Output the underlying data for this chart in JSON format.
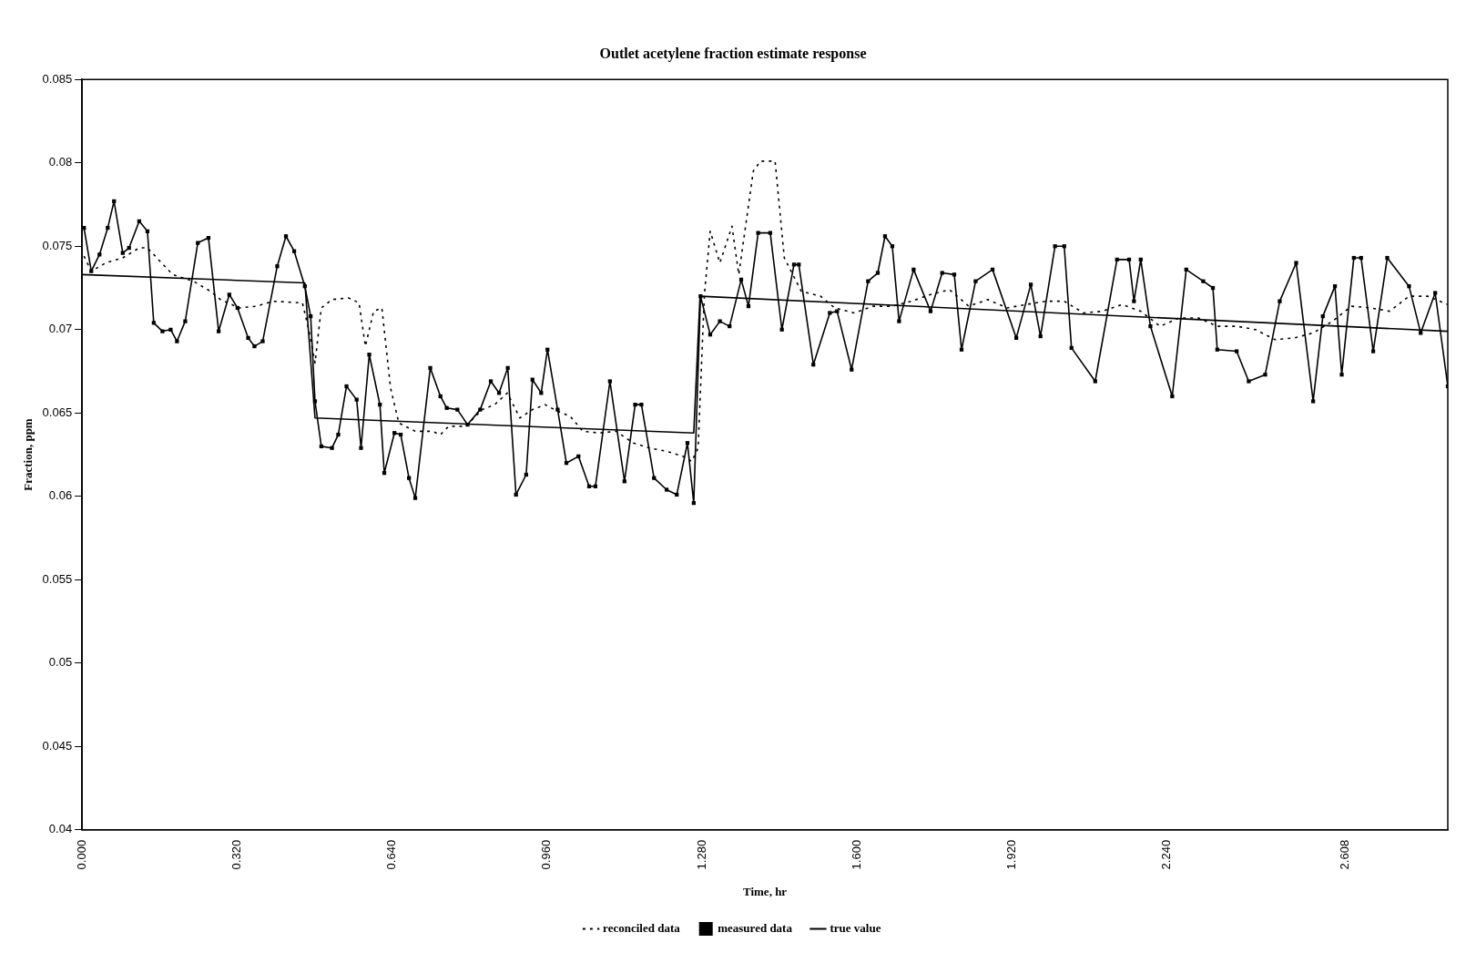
{
  "chart_data": {
    "type": "line",
    "title": "Outlet acetylene fraction estimate response",
    "xlabel": "Time, hr",
    "ylabel": "Fraction, ppm",
    "xlim": [
      0,
      2.82
    ],
    "xticks": [
      {
        "value": 0,
        "label": "0.000"
      },
      {
        "value": 0.32,
        "label": "0.320"
      },
      {
        "value": 0.64,
        "label": "0.640"
      },
      {
        "value": 0.96,
        "label": "0.960"
      },
      {
        "value": 1.28,
        "label": "1.280"
      },
      {
        "value": 1.6,
        "label": "1.600"
      },
      {
        "value": 1.92,
        "label": "1.920"
      },
      {
        "value": 2.24,
        "label": "2.240"
      },
      {
        "value": 2.608,
        "label": "2.608"
      }
    ],
    "ylim": [
      0.04,
      0.085
    ],
    "yticks": [
      0.04,
      0.045,
      0.05,
      0.055,
      0.06,
      0.065,
      0.07,
      0.075,
      0.08,
      0.085
    ],
    "grid": false,
    "legend": "bottom",
    "series": [
      {
        "name": "reconciled data",
        "color": "#000000",
        "line_style": "dotted",
        "marker": "none",
        "x": [
          0.004,
          0.019,
          0.049,
          0.084,
          0.118,
          0.135,
          0.187,
          0.23,
          0.265,
          0.286,
          0.325,
          0.36,
          0.394,
          0.455,
          0.468,
          0.481,
          0.494,
          0.516,
          0.55,
          0.572,
          0.585,
          0.602,
          0.619,
          0.637,
          0.654,
          0.688,
          0.723,
          0.74,
          0.757,
          0.792,
          0.826,
          0.852,
          0.878,
          0.904,
          0.93,
          0.956,
          0.982,
          1.008,
          1.034,
          1.068,
          1.103,
          1.138,
          1.172,
          1.207,
          1.241,
          1.259,
          1.272,
          1.285,
          1.297,
          1.317,
          1.342,
          1.356,
          1.386,
          1.401,
          1.431,
          1.45,
          1.485,
          1.525,
          1.554,
          1.594,
          1.633,
          1.673,
          1.712,
          1.752,
          1.791,
          1.831,
          1.87,
          1.91,
          1.949,
          1.989,
          2.028,
          2.068,
          2.107,
          2.147,
          2.186,
          2.226,
          2.265,
          2.305,
          2.344,
          2.384,
          2.423,
          2.463,
          2.503,
          2.542,
          2.582,
          2.621,
          2.661,
          2.7,
          2.74,
          2.779,
          2.82
        ],
        "values": [
          0.0744,
          0.0735,
          0.074,
          0.0743,
          0.0749,
          0.0749,
          0.0733,
          0.0729,
          0.0723,
          0.0718,
          0.0713,
          0.0714,
          0.0717,
          0.0716,
          0.07,
          0.068,
          0.0713,
          0.0718,
          0.0719,
          0.0716,
          0.069,
          0.0711,
          0.0713,
          0.0665,
          0.0644,
          0.0639,
          0.0639,
          0.0637,
          0.0642,
          0.0642,
          0.0652,
          0.0655,
          0.0662,
          0.0647,
          0.0652,
          0.0655,
          0.0651,
          0.0648,
          0.0639,
          0.0638,
          0.0639,
          0.0632,
          0.0629,
          0.0627,
          0.0624,
          0.0621,
          0.0629,
          0.0721,
          0.0759,
          0.074,
          0.0762,
          0.0733,
          0.0795,
          0.0801,
          0.0801,
          0.0743,
          0.0723,
          0.072,
          0.0713,
          0.071,
          0.0714,
          0.0714,
          0.0717,
          0.0721,
          0.0724,
          0.0714,
          0.0718,
          0.0713,
          0.0715,
          0.0717,
          0.0717,
          0.071,
          0.0711,
          0.0715,
          0.0711,
          0.0702,
          0.0707,
          0.0707,
          0.0702,
          0.0702,
          0.07,
          0.0694,
          0.0695,
          0.0698,
          0.0705,
          0.0714,
          0.0713,
          0.0711,
          0.072,
          0.072,
          0.0715
        ]
      },
      {
        "name": "measured data",
        "color": "#000000",
        "line_style": "solid",
        "marker": "square",
        "x": [
          0.004,
          0.019,
          0.036,
          0.053,
          0.066,
          0.084,
          0.097,
          0.118,
          0.135,
          0.148,
          0.166,
          0.183,
          0.196,
          0.213,
          0.239,
          0.261,
          0.282,
          0.304,
          0.321,
          0.343,
          0.356,
          0.373,
          0.403,
          0.421,
          0.438,
          0.46,
          0.472,
          0.481,
          0.494,
          0.516,
          0.529,
          0.546,
          0.567,
          0.576,
          0.593,
          0.615,
          0.624,
          0.645,
          0.658,
          0.675,
          0.688,
          0.719,
          0.74,
          0.753,
          0.775,
          0.796,
          0.822,
          0.844,
          0.861,
          0.879,
          0.896,
          0.917,
          0.93,
          0.948,
          0.961,
          0.982,
          1.0,
          1.025,
          1.047,
          1.06,
          1.09,
          1.12,
          1.142,
          1.155,
          1.181,
          1.207,
          1.228,
          1.25,
          1.263,
          1.277,
          1.297,
          1.317,
          1.337,
          1.361,
          1.376,
          1.396,
          1.421,
          1.445,
          1.47,
          1.48,
          1.51,
          1.544,
          1.559,
          1.589,
          1.623,
          1.643,
          1.658,
          1.673,
          1.687,
          1.717,
          1.752,
          1.776,
          1.801,
          1.816,
          1.845,
          1.88,
          1.929,
          1.959,
          1.979,
          2.009,
          2.028,
          2.043,
          2.092,
          2.137,
          2.162,
          2.172,
          2.186,
          2.206,
          2.251,
          2.28,
          2.315,
          2.335,
          2.344,
          2.384,
          2.409,
          2.443,
          2.473,
          2.507,
          2.542,
          2.562,
          2.587,
          2.601,
          2.626,
          2.641,
          2.666,
          2.695,
          2.74,
          2.764,
          2.794,
          2.82
        ],
        "values": [
          0.0761,
          0.0735,
          0.0745,
          0.0761,
          0.0777,
          0.0746,
          0.0749,
          0.0765,
          0.0759,
          0.0704,
          0.0699,
          0.07,
          0.0693,
          0.0705,
          0.0752,
          0.0755,
          0.0699,
          0.0721,
          0.0713,
          0.0695,
          0.069,
          0.0693,
          0.0738,
          0.0756,
          0.0747,
          0.0726,
          0.0708,
          0.0657,
          0.063,
          0.0629,
          0.0637,
          0.0666,
          0.0658,
          0.0629,
          0.0685,
          0.0655,
          0.0614,
          0.0638,
          0.0637,
          0.0611,
          0.0599,
          0.0677,
          0.066,
          0.0653,
          0.0652,
          0.0643,
          0.0652,
          0.0669,
          0.0662,
          0.0677,
          0.0601,
          0.0613,
          0.067,
          0.0662,
          0.0688,
          0.0652,
          0.062,
          0.0624,
          0.0606,
          0.0606,
          0.0669,
          0.0609,
          0.0655,
          0.0655,
          0.0611,
          0.0604,
          0.0601,
          0.0632,
          0.0596,
          0.072,
          0.0697,
          0.0705,
          0.0702,
          0.073,
          0.0714,
          0.0758,
          0.0758,
          0.07,
          0.0739,
          0.0739,
          0.0679,
          0.071,
          0.0711,
          0.0676,
          0.0729,
          0.0734,
          0.0756,
          0.075,
          0.0705,
          0.0736,
          0.0711,
          0.0734,
          0.0733,
          0.0688,
          0.0729,
          0.0736,
          0.0695,
          0.0727,
          0.0696,
          0.075,
          0.075,
          0.0689,
          0.0669,
          0.0742,
          0.0742,
          0.0717,
          0.0742,
          0.0702,
          0.066,
          0.0736,
          0.0729,
          0.0725,
          0.0688,
          0.0687,
          0.0669,
          0.0673,
          0.0717,
          0.074,
          0.0657,
          0.0708,
          0.0726,
          0.0673,
          0.0743,
          0.0743,
          0.0687,
          0.0743,
          0.0726,
          0.0698,
          0.0722,
          0.0666
        ]
      },
      {
        "name": "true value",
        "color": "#000000",
        "line_style": "solid",
        "marker": "none",
        "x": [
          0,
          0.46,
          0.481,
          1.263,
          1.276,
          2.82
        ],
        "values": [
          0.0733,
          0.0728,
          0.0647,
          0.0638,
          0.072,
          0.0699
        ]
      }
    ]
  }
}
